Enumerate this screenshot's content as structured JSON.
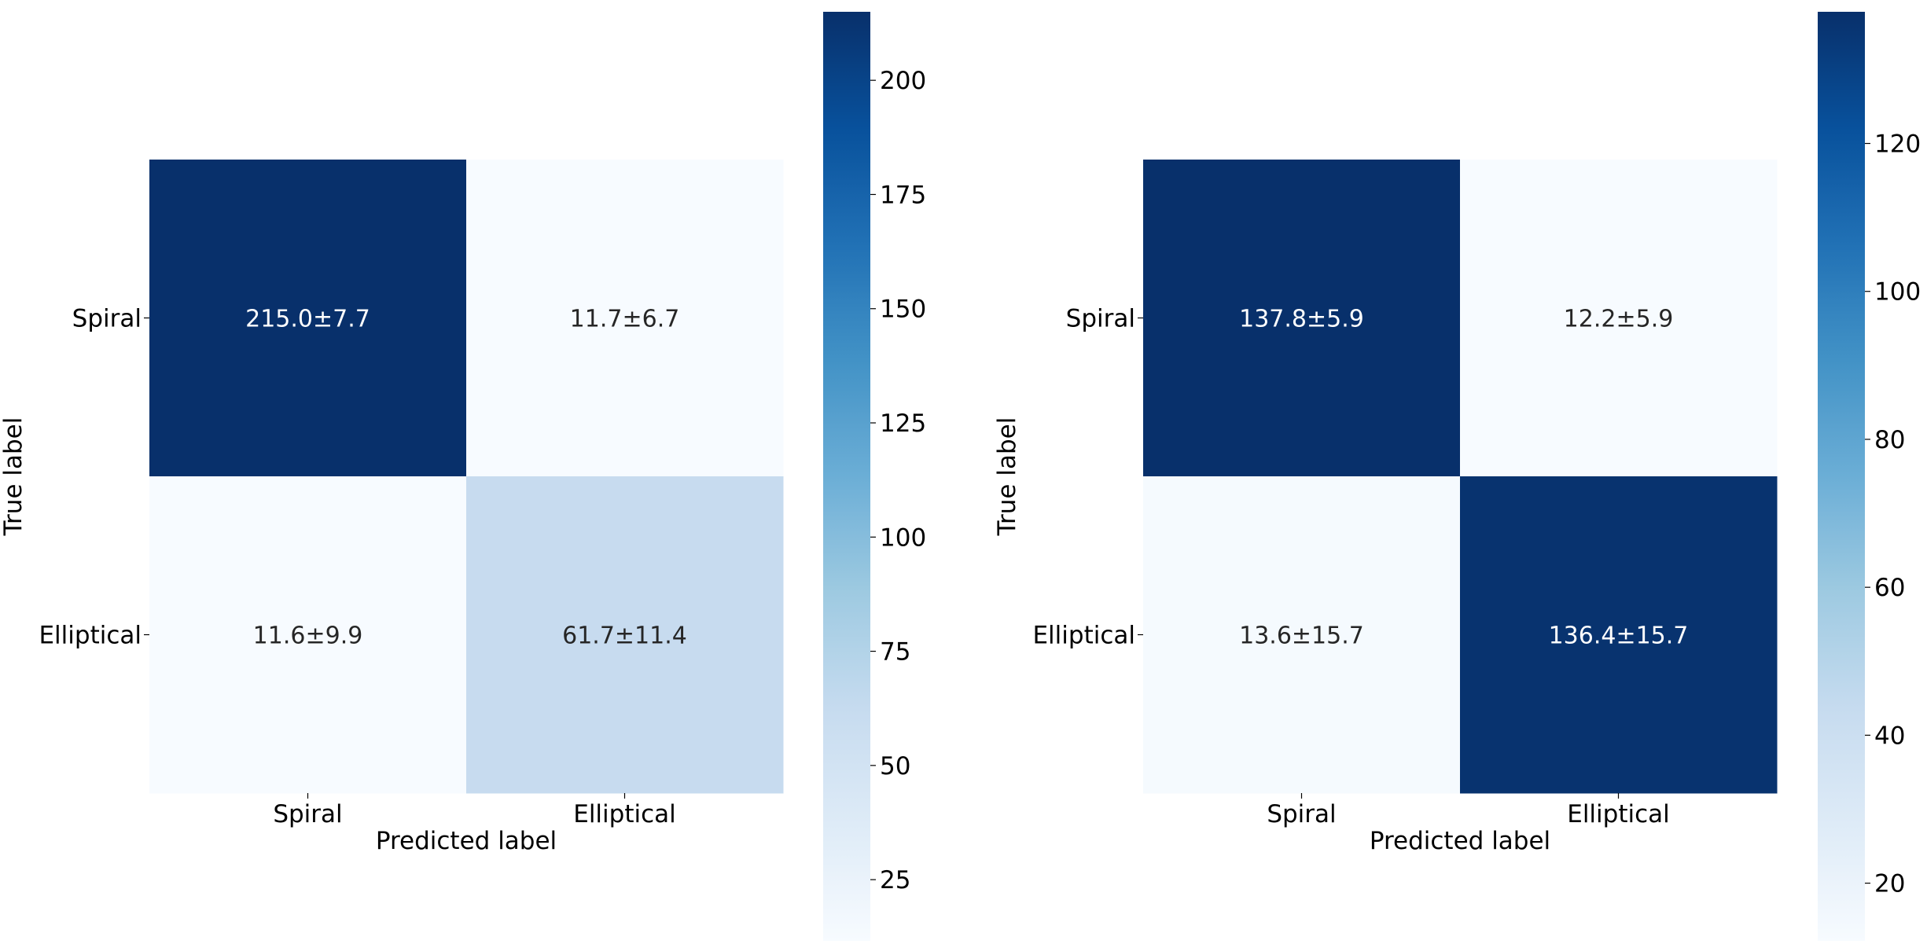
{
  "chart_data": [
    {
      "type": "heatmap",
      "rows": [
        "Spiral",
        "Elliptical"
      ],
      "columns": [
        "Spiral",
        "Elliptical"
      ],
      "values": [
        [
          215.0,
          11.7
        ],
        [
          11.6,
          61.7
        ]
      ],
      "cell_labels": [
        [
          "215.0±7.7",
          "11.7±6.7"
        ],
        [
          "11.6±9.9",
          "61.7±11.4"
        ]
      ],
      "xlabel": "Predicted label",
      "ylabel": "True label",
      "colormap": "Blues",
      "colorbar": {
        "range": [
          11.6,
          215.0
        ],
        "ticks": [
          25,
          50,
          75,
          100,
          125,
          150,
          175,
          200
        ],
        "tick_labels": [
          "25",
          "50",
          "75",
          "100",
          "125",
          "150",
          "175",
          "200"
        ]
      }
    },
    {
      "type": "heatmap",
      "rows": [
        "Spiral",
        "Elliptical"
      ],
      "columns": [
        "Spiral",
        "Elliptical"
      ],
      "values": [
        [
          137.8,
          12.2
        ],
        [
          13.6,
          136.4
        ]
      ],
      "cell_labels": [
        [
          "137.8±5.9",
          "12.2±5.9"
        ],
        [
          "13.6±15.7",
          "136.4±15.7"
        ]
      ],
      "xlabel": "Predicted label",
      "ylabel": "True label",
      "colormap": "Blues",
      "colorbar": {
        "range": [
          12.2,
          137.8
        ],
        "ticks": [
          20,
          40,
          60,
          80,
          100,
          120
        ],
        "tick_labels": [
          "20",
          "40",
          "60",
          "80",
          "100",
          "120"
        ]
      }
    }
  ]
}
